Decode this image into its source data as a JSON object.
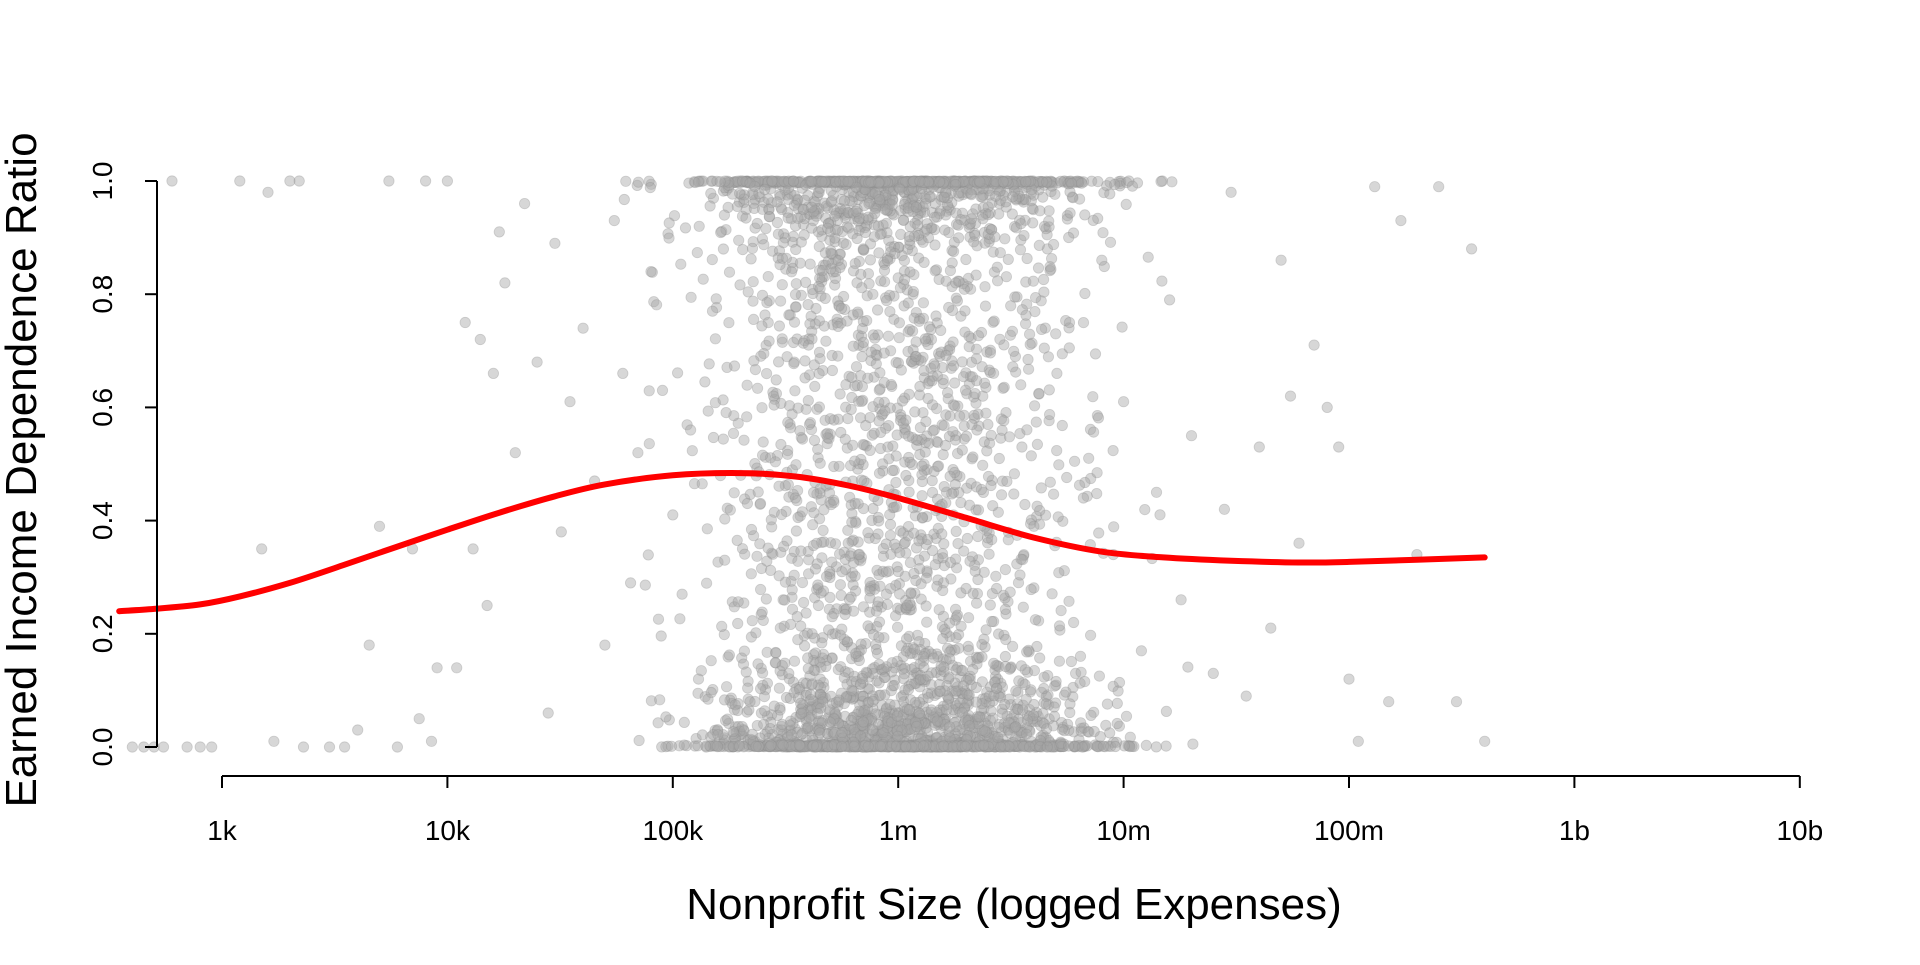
{
  "chart_data": {
    "type": "scatter",
    "title": "",
    "xlabel": "Nonprofit Size (logged Expenses)",
    "ylabel": "Earned Income Dependence Ratio",
    "x_scale": "log10",
    "xlim": [
      350,
      10000000000
    ],
    "ylim": [
      0,
      1
    ],
    "x_ticks": [
      {
        "value": 1000,
        "label": "1k"
      },
      {
        "value": 10000,
        "label": "10k"
      },
      {
        "value": 100000,
        "label": "100k"
      },
      {
        "value": 1000000,
        "label": "1m"
      },
      {
        "value": 10000000,
        "label": "10m"
      },
      {
        "value": 100000000,
        "label": "100m"
      },
      {
        "value": 1000000000,
        "label": "1b"
      },
      {
        "value": 10000000000,
        "label": "10b"
      }
    ],
    "y_ticks": [
      {
        "value": 0.0,
        "label": "0.0"
      },
      {
        "value": 0.2,
        "label": "0.2"
      },
      {
        "value": 0.4,
        "label": "0.4"
      },
      {
        "value": 0.6,
        "label": "0.6"
      },
      {
        "value": 0.8,
        "label": "0.8"
      },
      {
        "value": 1.0,
        "label": "1.0"
      }
    ],
    "grid": false,
    "legend": "none",
    "colors": {
      "points": "#a6a6a6",
      "trend": "#ff0000",
      "axis": "#000000"
    },
    "series": [
      {
        "kind": "points",
        "x_range": [
          400,
          400000000
        ],
        "approx_count": 4000,
        "points": [
          [
            400,
            0.0
          ],
          [
            450,
            0.0
          ],
          [
            500,
            0.0
          ],
          [
            550,
            0.0
          ],
          [
            600,
            1.0
          ],
          [
            700,
            0.0
          ],
          [
            800,
            0.0
          ],
          [
            900,
            0.0
          ],
          [
            1200,
            1.0
          ],
          [
            1500,
            0.35
          ],
          [
            1600,
            0.98
          ],
          [
            1700,
            0.01
          ],
          [
            2000,
            1.0
          ],
          [
            2200,
            1.0
          ],
          [
            2300,
            0.0
          ],
          [
            3000,
            0.0
          ],
          [
            3500,
            0.0
          ],
          [
            4000,
            0.03
          ],
          [
            4500,
            0.18
          ],
          [
            5000,
            0.39
          ],
          [
            5500,
            1.0
          ],
          [
            6000,
            0.0
          ],
          [
            7000,
            0.35
          ],
          [
            7500,
            0.05
          ],
          [
            8000,
            1.0
          ],
          [
            8500,
            0.01
          ],
          [
            9000,
            0.14
          ],
          [
            10000,
            1.0
          ],
          [
            11000,
            0.14
          ],
          [
            12000,
            0.75
          ],
          [
            13000,
            0.35
          ],
          [
            14000,
            0.72
          ],
          [
            15000,
            0.25
          ],
          [
            16000,
            0.66
          ],
          [
            17000,
            0.91
          ],
          [
            18000,
            0.82
          ],
          [
            20000,
            0.52
          ],
          [
            22000,
            0.96
          ],
          [
            25000,
            0.68
          ],
          [
            28000,
            0.06
          ],
          [
            30000,
            0.89
          ],
          [
            32000,
            0.38
          ],
          [
            35000,
            0.61
          ],
          [
            40000,
            0.74
          ],
          [
            45000,
            0.47
          ],
          [
            50000,
            0.18
          ],
          [
            55000,
            0.93
          ],
          [
            60000,
            0.66
          ],
          [
            65000,
            0.29
          ],
          [
            70000,
            0.52
          ],
          [
            80000,
            0.84
          ],
          [
            90000,
            0.63
          ],
          [
            100000,
            0.41
          ],
          [
            110000,
            0.27
          ],
          [
            120000,
            0.56
          ],
          [
            130000,
            0.12
          ],
          [
            150000,
            0.77
          ],
          [
            170000,
            0.33
          ],
          [
            200000,
            0.48
          ],
          [
            220000,
            0.08
          ],
          [
            250000,
            0.95
          ],
          [
            280000,
            0.62
          ],
          [
            300000,
            0.21
          ],
          [
            350000,
            0.44
          ],
          [
            400000,
            0.71
          ],
          [
            450000,
            0.15
          ],
          [
            500000,
            0.58
          ],
          [
            600000,
            0.36
          ],
          [
            700000,
            0.88
          ],
          [
            800000,
            0.24
          ],
          [
            900000,
            0.53
          ],
          [
            1000000,
            0.31
          ],
          [
            1200000,
            0.69
          ],
          [
            1400000,
            0.11
          ],
          [
            1600000,
            0.46
          ],
          [
            1800000,
            0.82
          ],
          [
            2000000,
            0.28
          ],
          [
            2500000,
            0.57
          ],
          [
            3000000,
            0.19
          ],
          [
            3500000,
            0.64
          ],
          [
            4000000,
            0.39
          ],
          [
            5000000,
            0.73
          ],
          [
            6000000,
            0.22
          ],
          [
            7000000,
            0.51
          ],
          [
            8000000,
            0.86
          ],
          [
            9000000,
            0.34
          ],
          [
            10000000,
            0.61
          ],
          [
            12000000,
            0.17
          ],
          [
            14000000,
            0.45
          ],
          [
            16000000,
            0.79
          ],
          [
            18000000,
            0.26
          ],
          [
            20000000,
            0.55
          ],
          [
            25000000,
            0.13
          ],
          [
            28000000,
            0.42
          ],
          [
            30000000,
            0.98
          ],
          [
            35000000,
            0.09
          ],
          [
            40000000,
            0.53
          ],
          [
            45000000,
            0.21
          ],
          [
            50000000,
            0.86
          ],
          [
            55000000,
            0.62
          ],
          [
            60000000,
            0.36
          ],
          [
            70000000,
            0.71
          ],
          [
            80000000,
            0.6
          ],
          [
            90000000,
            0.53
          ],
          [
            100000000,
            0.12
          ],
          [
            110000000,
            0.01
          ],
          [
            130000000,
            0.99
          ],
          [
            150000000,
            0.08
          ],
          [
            170000000,
            0.93
          ],
          [
            200000000,
            0.34
          ],
          [
            250000000,
            0.99
          ],
          [
            300000000,
            0.08
          ],
          [
            350000000,
            0.88
          ],
          [
            400000000,
            0.01
          ]
        ]
      },
      {
        "kind": "trend",
        "points": [
          [
            350,
            0.24
          ],
          [
            500,
            0.244
          ],
          [
            800,
            0.252
          ],
          [
            1200,
            0.266
          ],
          [
            2000,
            0.29
          ],
          [
            3500,
            0.322
          ],
          [
            6000,
            0.354
          ],
          [
            10000,
            0.384
          ],
          [
            17000,
            0.414
          ],
          [
            30000,
            0.443
          ],
          [
            50000,
            0.464
          ],
          [
            100000,
            0.48
          ],
          [
            200000,
            0.484
          ],
          [
            350000,
            0.478
          ],
          [
            600000,
            0.462
          ],
          [
            1000000,
            0.44
          ],
          [
            2000000,
            0.405
          ],
          [
            4000000,
            0.37
          ],
          [
            8000000,
            0.345
          ],
          [
            15000000,
            0.335
          ],
          [
            30000000,
            0.329
          ],
          [
            60000000,
            0.326
          ],
          [
            100000000,
            0.327
          ],
          [
            200000000,
            0.331
          ],
          [
            400000000,
            0.335
          ]
        ]
      }
    ]
  }
}
